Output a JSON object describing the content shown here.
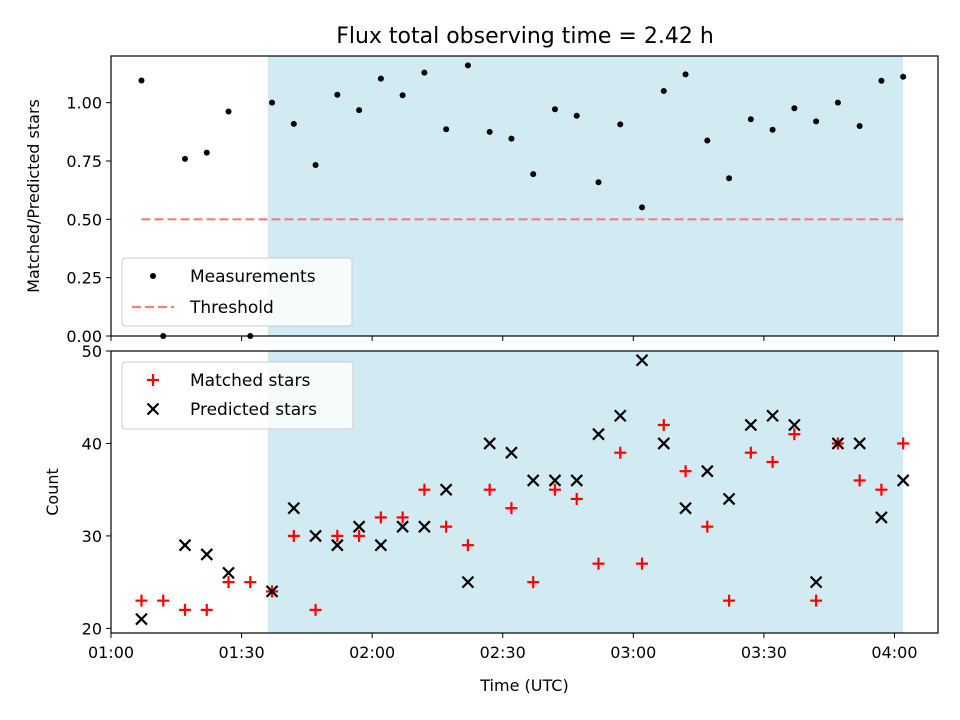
{
  "chart_data": [
    {
      "type": "scatter",
      "title": "Flux total observing time = 2.42 h",
      "xlabel": "",
      "ylabel": "Matched/Predicted stars",
      "xlim": [
        "01:00",
        "04:10"
      ],
      "ylim": [
        0,
        1.2
      ],
      "yticks": [
        "0.00",
        "0.25",
        "0.50",
        "0.75",
        "1.00"
      ],
      "shaded_span": [
        "01:36",
        "04:02"
      ],
      "shaded_color": "#add8e6",
      "legend_position": "lower-left",
      "series": [
        {
          "name": "Measurements",
          "marker": "dot",
          "color": "#000000",
          "x": [
            "01:07",
            "01:12",
            "01:17",
            "01:22",
            "01:27",
            "01:32",
            "01:37",
            "01:42",
            "01:47",
            "01:52",
            "01:57",
            "02:02",
            "02:07",
            "02:12",
            "02:17",
            "02:22",
            "02:27",
            "02:32",
            "02:37",
            "02:42",
            "02:47",
            "02:52",
            "02:57",
            "03:02",
            "03:07",
            "03:12",
            "03:17",
            "03:22",
            "03:27",
            "03:32",
            "03:37",
            "03:42",
            "03:47",
            "03:52",
            "03:57",
            "04:02"
          ],
          "y": [
            1.095,
            0.0,
            0.759,
            0.786,
            0.962,
            0.0,
            1.0,
            0.909,
            0.733,
            1.034,
            0.968,
            1.103,
            1.032,
            1.129,
            0.886,
            1.16,
            0.875,
            0.846,
            0.694,
            0.972,
            0.944,
            0.659,
            0.907,
            0.551,
            1.05,
            1.121,
            0.838,
            0.676,
            0.929,
            0.884,
            0.976,
            0.92,
            1.0,
            0.9,
            1.094,
            1.111
          ]
        },
        {
          "name": "Threshold",
          "marker": "dashed-line",
          "color": "#f08080",
          "x": [
            "01:07",
            "04:02"
          ],
          "y": [
            0.5,
            0.5
          ]
        }
      ]
    },
    {
      "type": "scatter",
      "title": "",
      "xlabel": "Time (UTC)",
      "ylabel": "Count",
      "xlim": [
        "01:00",
        "04:10"
      ],
      "ylim": [
        19.5,
        50
      ],
      "xticks": [
        "01:00",
        "01:30",
        "02:00",
        "02:30",
        "03:00",
        "03:30",
        "04:00"
      ],
      "yticks": [
        "20",
        "30",
        "40",
        "50"
      ],
      "shaded_span": [
        "01:36",
        "04:02"
      ],
      "shaded_color": "#add8e6",
      "legend_position": "upper-left",
      "series": [
        {
          "name": "Matched stars",
          "marker": "plus",
          "color": "#ff0000",
          "x": [
            "01:07",
            "01:12",
            "01:17",
            "01:22",
            "01:27",
            "01:32",
            "01:37",
            "01:42",
            "01:47",
            "01:52",
            "01:57",
            "02:02",
            "02:07",
            "02:12",
            "02:17",
            "02:22",
            "02:27",
            "02:32",
            "02:37",
            "02:42",
            "02:47",
            "02:52",
            "02:57",
            "03:02",
            "03:07",
            "03:12",
            "03:17",
            "03:22",
            "03:27",
            "03:32",
            "03:37",
            "03:42",
            "03:47",
            "03:52",
            "03:57",
            "04:02"
          ],
          "y": [
            23,
            23,
            22,
            22,
            25,
            25,
            24,
            30,
            22,
            30,
            30,
            32,
            32,
            35,
            31,
            29,
            35,
            33,
            25,
            35,
            34,
            27,
            39,
            27,
            42,
            37,
            31,
            23,
            39,
            38,
            41,
            23,
            40,
            36,
            35,
            40
          ]
        },
        {
          "name": "Predicted stars",
          "marker": "x",
          "color": "#000000",
          "x": [
            "01:07",
            "01:17",
            "01:22",
            "01:27",
            "01:37",
            "01:42",
            "01:47",
            "01:52",
            "01:57",
            "02:02",
            "02:07",
            "02:12",
            "02:17",
            "02:22",
            "02:27",
            "02:32",
            "02:37",
            "02:42",
            "02:47",
            "02:52",
            "02:57",
            "03:02",
            "03:07",
            "03:12",
            "03:17",
            "03:22",
            "03:27",
            "03:32",
            "03:37",
            "03:42",
            "03:47",
            "03:52",
            "03:57",
            "04:02"
          ],
          "y": [
            21,
            29,
            28,
            26,
            24,
            33,
            30,
            29,
            31,
            29,
            31,
            31,
            35,
            25,
            40,
            39,
            36,
            36,
            36,
            41,
            43,
            49,
            40,
            33,
            37,
            34,
            42,
            43,
            42,
            25,
            40,
            40,
            32,
            36
          ]
        }
      ]
    }
  ]
}
